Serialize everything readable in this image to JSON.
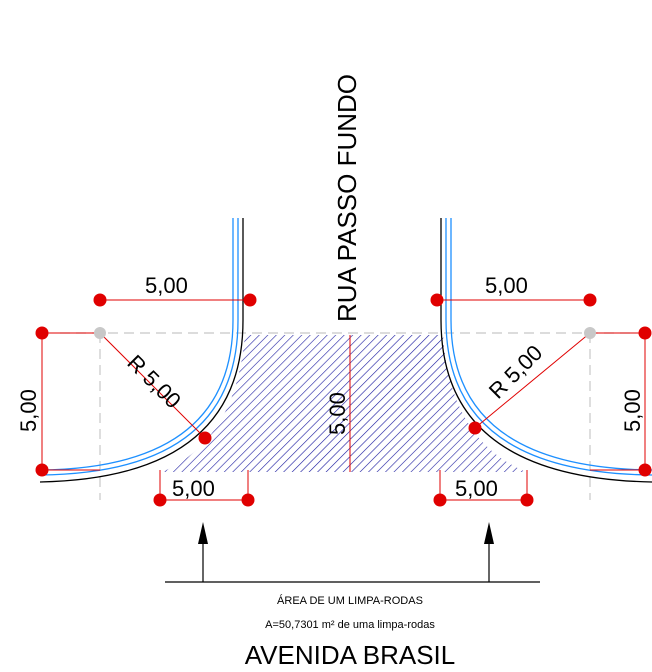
{
  "street_vertical": "RUA PASSO FUNDO",
  "street_horizontal": "AVENIDA BRASIL",
  "dimensions": {
    "top_left": "5,00",
    "top_right": "5,00",
    "left_side": "5,00",
    "right_side": "5,00",
    "bottom_left": "5,00",
    "bottom_right": "5,00",
    "center": "5,00",
    "radius_left": "R 5,00",
    "radius_right": "R 5,00"
  },
  "area_label": "ÁREA DE UM LIMPA-RODAS",
  "area_value": "A=50,7301 m² de uma limpa-rodas",
  "colors": {
    "curb_blue": "#1e90ff",
    "curb_black": "#000000",
    "dimension_red": "#e00000",
    "grid_dot": "#c8c8c8",
    "hatch_blue": "#1a1aa0"
  }
}
